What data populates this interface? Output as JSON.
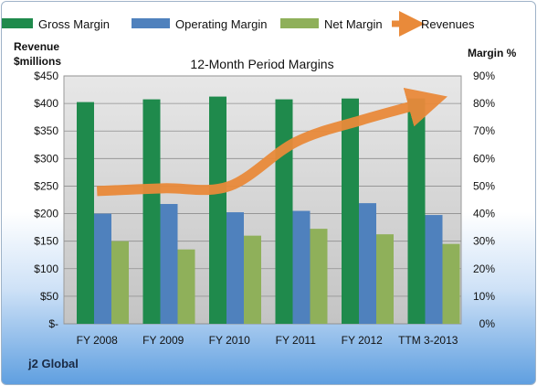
{
  "chart_data": {
    "type": "bar",
    "title": "12-Month Period Margins",
    "company_label": "j2 Global",
    "left_axis": {
      "label_line1": "Revenue",
      "label_line2": "$millions",
      "ticks": [
        "$-",
        "$50",
        "$100",
        "$150",
        "$200",
        "$250",
        "$300",
        "$350",
        "$400",
        "$450"
      ],
      "range": [
        0,
        450
      ]
    },
    "right_axis": {
      "label": "Margin %",
      "ticks": [
        "0%",
        "10%",
        "20%",
        "30%",
        "40%",
        "50%",
        "60%",
        "70%",
        "80%",
        "90%"
      ],
      "range": [
        0,
        90
      ]
    },
    "categories": [
      "FY 2008",
      "FY 2009",
      "FY 2010",
      "FY 2011",
      "FY 2012",
      "TTM 3-2013"
    ],
    "series": [
      {
        "name": "Gross Margin",
        "axis": "right",
        "color": "#1f8a4c",
        "values": [
          80.5,
          81.5,
          82.5,
          81.5,
          81.8,
          81.8
        ]
      },
      {
        "name": "Operating Margin",
        "axis": "right",
        "color": "#4f81bd",
        "values": [
          40.0,
          43.5,
          40.5,
          41.0,
          43.8,
          39.5
        ]
      },
      {
        "name": "Net Margin",
        "axis": "right",
        "color": "#8fb05a",
        "values": [
          30.0,
          27.0,
          32.0,
          34.5,
          32.5,
          29.0
        ]
      },
      {
        "name": "Revenues",
        "axis": "left",
        "type": "line",
        "color": "#e98a3a",
        "values": [
          241,
          246,
          250,
          330,
          370,
          403
        ]
      }
    ],
    "grid": true,
    "legend_position": "top"
  }
}
